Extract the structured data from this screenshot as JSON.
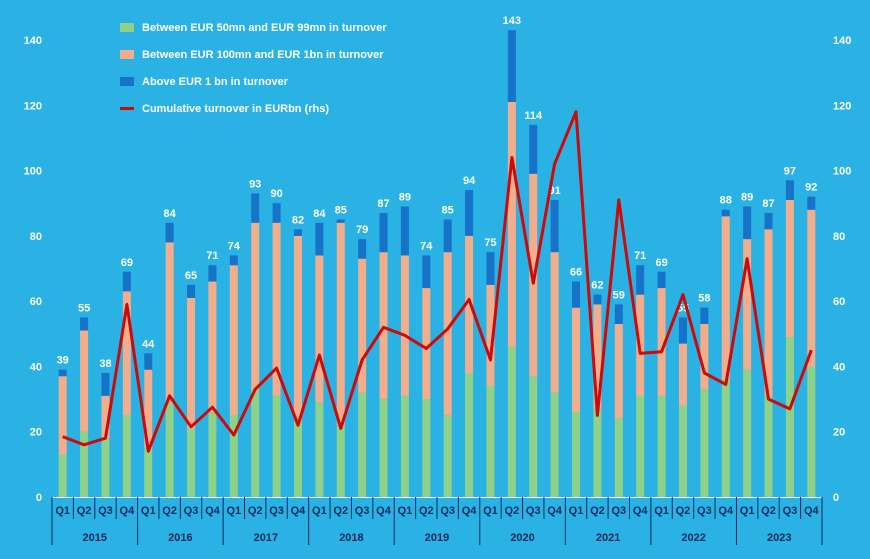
{
  "chart_data": {
    "type": "bar",
    "stacked": true,
    "years": [
      "2015",
      "2016",
      "2017",
      "2018",
      "2019",
      "2020",
      "2021",
      "2022",
      "2023"
    ],
    "quarters": [
      "Q1",
      "Q2",
      "Q3",
      "Q4"
    ],
    "totals": [
      39,
      55,
      38,
      69,
      44,
      84,
      65,
      71,
      74,
      93,
      90,
      82,
      84,
      85,
      79,
      87,
      89,
      74,
      85,
      94,
      75,
      143,
      114,
      91,
      66,
      62,
      59,
      71,
      69,
      55,
      58,
      88,
      89,
      87,
      97,
      92
    ],
    "series": [
      {
        "name": "Between EUR 50mn and EUR 99mn in turnover",
        "color": "#8fd18a",
        "values": [
          13,
          20,
          18,
          25,
          15,
          29,
          21,
          26,
          25,
          33,
          31,
          24,
          29,
          22,
          32,
          30,
          31,
          30,
          25,
          38,
          34,
          46,
          37,
          32,
          26,
          27,
          24,
          31,
          31,
          28,
          33,
          36,
          39,
          31,
          49,
          40
        ]
      },
      {
        "name": "Between EUR 100mn and EUR 1bn in turnover",
        "color": "#f2ae8c",
        "values": [
          24,
          31,
          13,
          38,
          24,
          49,
          40,
          40,
          46,
          51,
          53,
          56,
          45,
          62,
          41,
          45,
          43,
          34,
          50,
          42,
          31,
          75,
          62,
          43,
          32,
          32,
          29,
          31,
          33,
          19,
          20,
          50,
          40,
          51,
          42,
          48
        ]
      },
      {
        "name": "Above EUR 1 bn in turnover",
        "color": "#1673c7",
        "values": [
          2,
          4,
          7,
          6,
          5,
          6,
          4,
          5,
          3,
          9,
          6,
          2,
          10,
          1,
          6,
          12,
          15,
          10,
          10,
          14,
          10,
          22,
          15,
          16,
          8,
          3,
          6,
          9,
          5,
          8,
          5,
          2,
          10,
          5,
          6,
          4
        ]
      }
    ],
    "line": {
      "name": "Cumulative turnover in EURbn (rhs)",
      "color": "#cc0a0a",
      "values": [
        18.5,
        16,
        18,
        59,
        14,
        31,
        21.5,
        27.5,
        19,
        33,
        39.5,
        22,
        43.5,
        21,
        42,
        52,
        49.5,
        45.5,
        51.5,
        60.5,
        42,
        104,
        65.5,
        102,
        118,
        25,
        91,
        44,
        44.5,
        62,
        38,
        34.5,
        73,
        30,
        27,
        45
      ]
    },
    "y_left": {
      "min": 0,
      "max": 140,
      "ticks": [
        0,
        20,
        40,
        60,
        80,
        100,
        120,
        140
      ]
    },
    "y_right": {
      "min": 0,
      "max": 140,
      "ticks": [
        0,
        20,
        40,
        60,
        80,
        100,
        120,
        140
      ]
    },
    "legend_position": "top-left"
  }
}
